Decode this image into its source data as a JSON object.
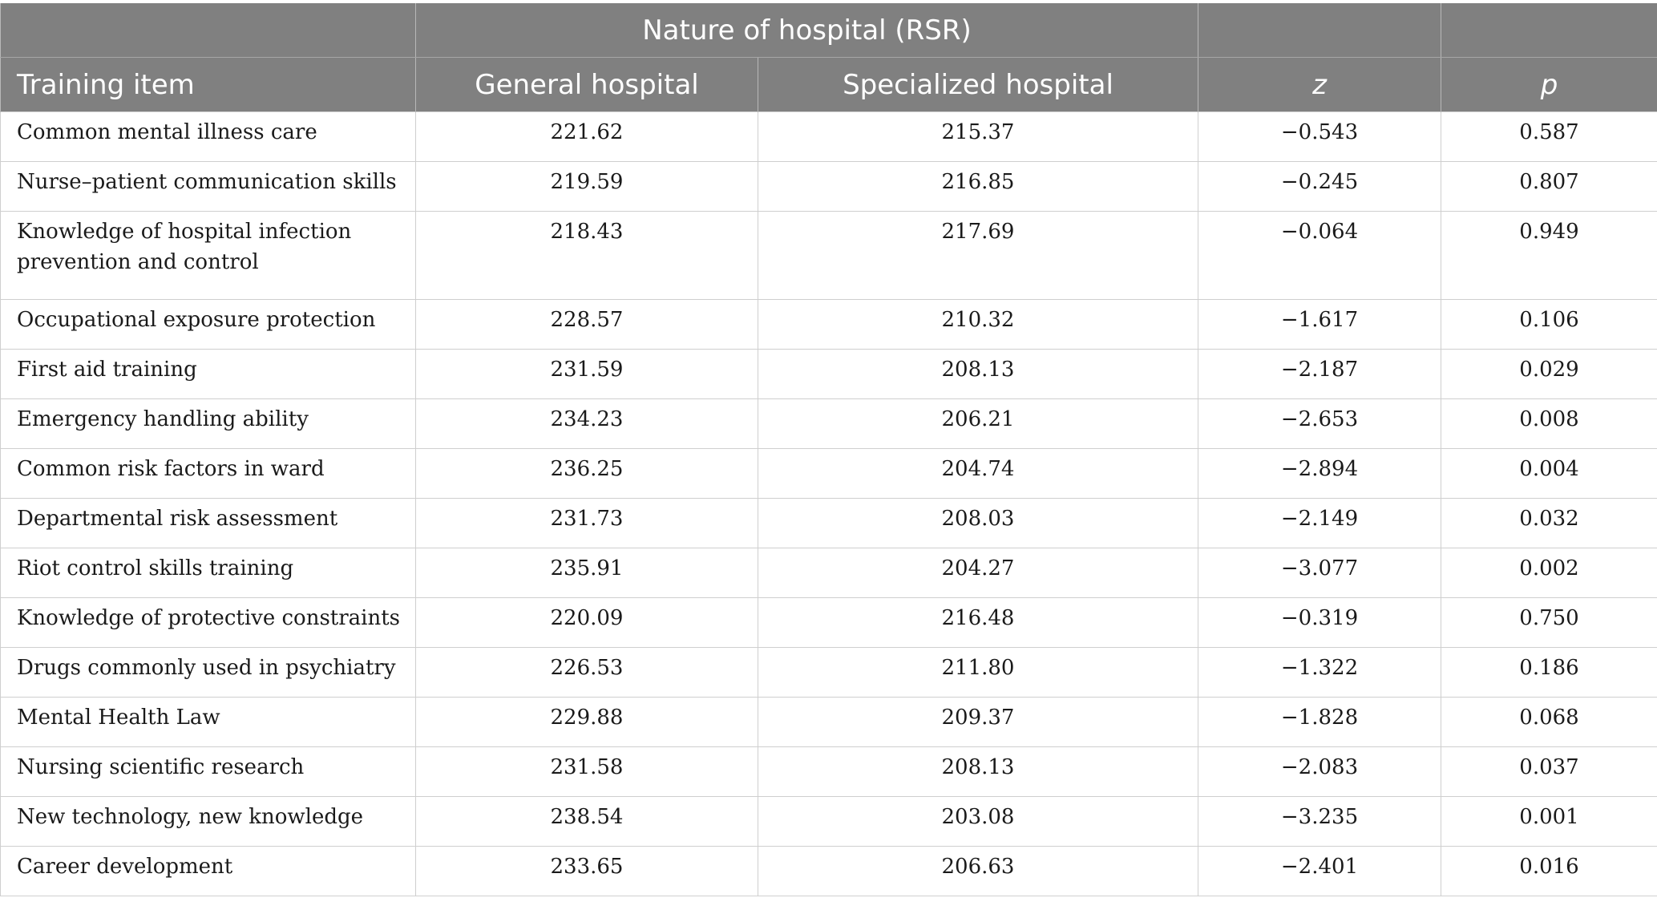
{
  "table": {
    "group_header": "Nature of hospital (RSR)",
    "headers": [
      "Training item",
      "General hospital",
      "Specialized hospital",
      "z",
      "p"
    ],
    "rows": [
      {
        "item": "Common mental illness care",
        "general": "221.62",
        "specialized": "215.37",
        "z": "−0.543",
        "p": "0.587"
      },
      {
        "item": "Nurse–patient communication skills",
        "general": "219.59",
        "specialized": "216.85",
        "z": "−0.245",
        "p": "0.807"
      },
      {
        "item": "Knowledge of hospital infection",
        "item_line2": "prevention and control",
        "general": "218.43",
        "specialized": "217.69",
        "z": "−0.064",
        "p": "0.949"
      },
      {
        "item": "Occupational exposure protection",
        "general": "228.57",
        "specialized": "210.32",
        "z": "−1.617",
        "p": "0.106"
      },
      {
        "item": "First aid training",
        "general": "231.59",
        "specialized": "208.13",
        "z": "−2.187",
        "p": "0.029"
      },
      {
        "item": "Emergency handling ability",
        "general": "234.23",
        "specialized": "206.21",
        "z": "−2.653",
        "p": "0.008"
      },
      {
        "item": "Common risk factors in ward",
        "general": "236.25",
        "specialized": "204.74",
        "z": "−2.894",
        "p": "0.004"
      },
      {
        "item": "Departmental risk assessment",
        "general": "231.73",
        "specialized": "208.03",
        "z": "−2.149",
        "p": "0.032"
      },
      {
        "item": "Riot control skills training",
        "general": "235.91",
        "specialized": "204.27",
        "z": "−3.077",
        "p": "0.002"
      },
      {
        "item": "Knowledge of protective constraints",
        "general": "220.09",
        "specialized": "216.48",
        "z": "−0.319",
        "p": "0.750"
      },
      {
        "item": "Drugs commonly used in psychiatry",
        "general": "226.53",
        "specialized": "211.80",
        "z": "−1.322",
        "p": "0.186"
      },
      {
        "item": "Mental Health Law",
        "general": "229.88",
        "specialized": "209.37",
        "z": "−1.828",
        "p": "0.068"
      },
      {
        "item": "Nursing scientific research",
        "general": "231.58",
        "specialized": "208.13",
        "z": "−2.083",
        "p": "0.037"
      },
      {
        "item": "New technology, new knowledge",
        "general": "238.54",
        "specialized": "203.08",
        "z": "−3.235",
        "p": "0.001"
      },
      {
        "item": "Career development",
        "general": "233.65",
        "specialized": "206.63",
        "z": "−2.401",
        "p": "0.016"
      }
    ]
  },
  "colors": {
    "header_bg": "#808080",
    "header_text": "#ffffff",
    "grid_line": "#cfcfcf"
  }
}
